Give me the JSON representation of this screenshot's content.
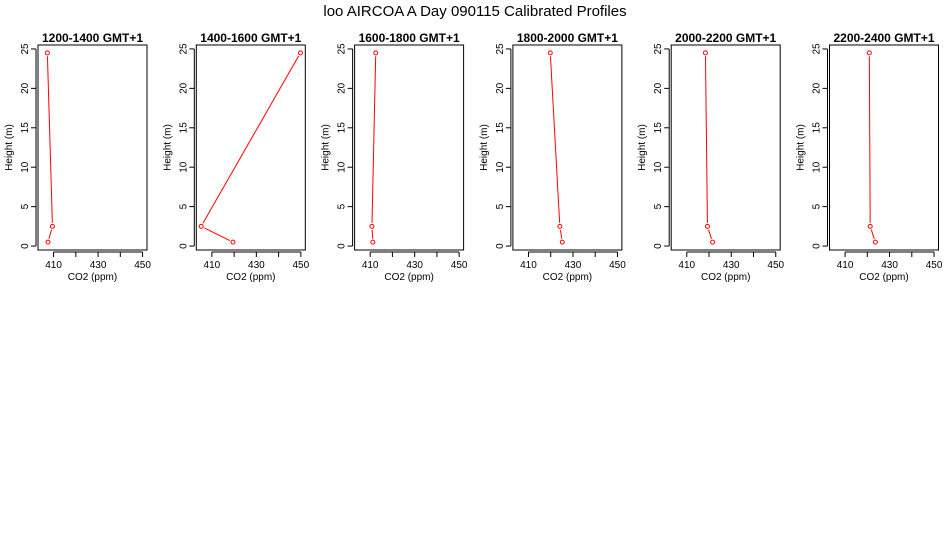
{
  "figure_title": "loo AIRCOA A  Day 090115  Calibrated Profiles",
  "colors": {
    "series": "#ff0000",
    "axis": "#000000",
    "background": "#ffffff"
  },
  "chart_data": [
    {
      "type": "line",
      "title": "1200-1400 GMT+1",
      "xlabel": "CO2 (ppm)",
      "ylabel": "Height (m)",
      "xlim": [
        403,
        452
      ],
      "ylim": [
        -0.5,
        25.5
      ],
      "xticks": [
        410,
        430,
        450
      ],
      "yticks": [
        0,
        5,
        10,
        15,
        20,
        25
      ],
      "grid": false,
      "series": [
        {
          "x": [
            407.5,
            409.5,
            407.2
          ],
          "y": [
            0.5,
            2.5,
            24.5
          ]
        }
      ]
    },
    {
      "type": "line",
      "title": "1400-1600 GMT+1",
      "xlabel": "CO2 (ppm)",
      "ylabel": "Height (m)",
      "xlim": [
        403,
        452
      ],
      "ylim": [
        -0.5,
        25.5
      ],
      "xticks": [
        410,
        430,
        450
      ],
      "yticks": [
        0,
        5,
        10,
        15,
        20,
        25
      ],
      "grid": false,
      "series": [
        {
          "x": [
            419.5,
            405.2,
            449.8
          ],
          "y": [
            0.5,
            2.5,
            24.5
          ]
        }
      ]
    },
    {
      "type": "line",
      "title": "1600-1800 GMT+1",
      "xlabel": "CO2 (ppm)",
      "ylabel": "Height (m)",
      "xlim": [
        403,
        452
      ],
      "ylim": [
        -0.5,
        25.5
      ],
      "xticks": [
        410,
        430,
        450
      ],
      "yticks": [
        0,
        5,
        10,
        15,
        20,
        25
      ],
      "grid": false,
      "series": [
        {
          "x": [
            411.2,
            410.8,
            412.5
          ],
          "y": [
            0.5,
            2.5,
            24.5
          ]
        }
      ]
    },
    {
      "type": "line",
      "title": "1800-2000 GMT+1",
      "xlabel": "CO2 (ppm)",
      "ylabel": "Height (m)",
      "xlim": [
        403,
        452
      ],
      "ylim": [
        -0.5,
        25.5
      ],
      "xticks": [
        410,
        430,
        450
      ],
      "yticks": [
        0,
        5,
        10,
        15,
        20,
        25
      ],
      "grid": false,
      "series": [
        {
          "x": [
            425.2,
            424.1,
            419.8
          ],
          "y": [
            0.5,
            2.5,
            24.5
          ]
        }
      ]
    },
    {
      "type": "line",
      "title": "2000-2200 GMT+1",
      "xlabel": "CO2 (ppm)",
      "ylabel": "Height (m)",
      "xlim": [
        403,
        452
      ],
      "ylim": [
        -0.5,
        25.5
      ],
      "xticks": [
        410,
        430,
        450
      ],
      "yticks": [
        0,
        5,
        10,
        15,
        20,
        25
      ],
      "grid": false,
      "series": [
        {
          "x": [
            421.6,
            419.3,
            418.4
          ],
          "y": [
            0.5,
            2.5,
            24.5
          ]
        }
      ]
    },
    {
      "type": "line",
      "title": "2200-2400 GMT+1",
      "xlabel": "CO2 (ppm)",
      "ylabel": "Height (m)",
      "xlim": [
        403,
        452
      ],
      "ylim": [
        -0.5,
        25.5
      ],
      "xticks": [
        410,
        430,
        450
      ],
      "yticks": [
        0,
        5,
        10,
        15,
        20,
        25
      ],
      "grid": false,
      "series": [
        {
          "x": [
            423.6,
            421.3,
            420.9
          ],
          "y": [
            0.5,
            2.5,
            24.5
          ]
        }
      ]
    }
  ]
}
